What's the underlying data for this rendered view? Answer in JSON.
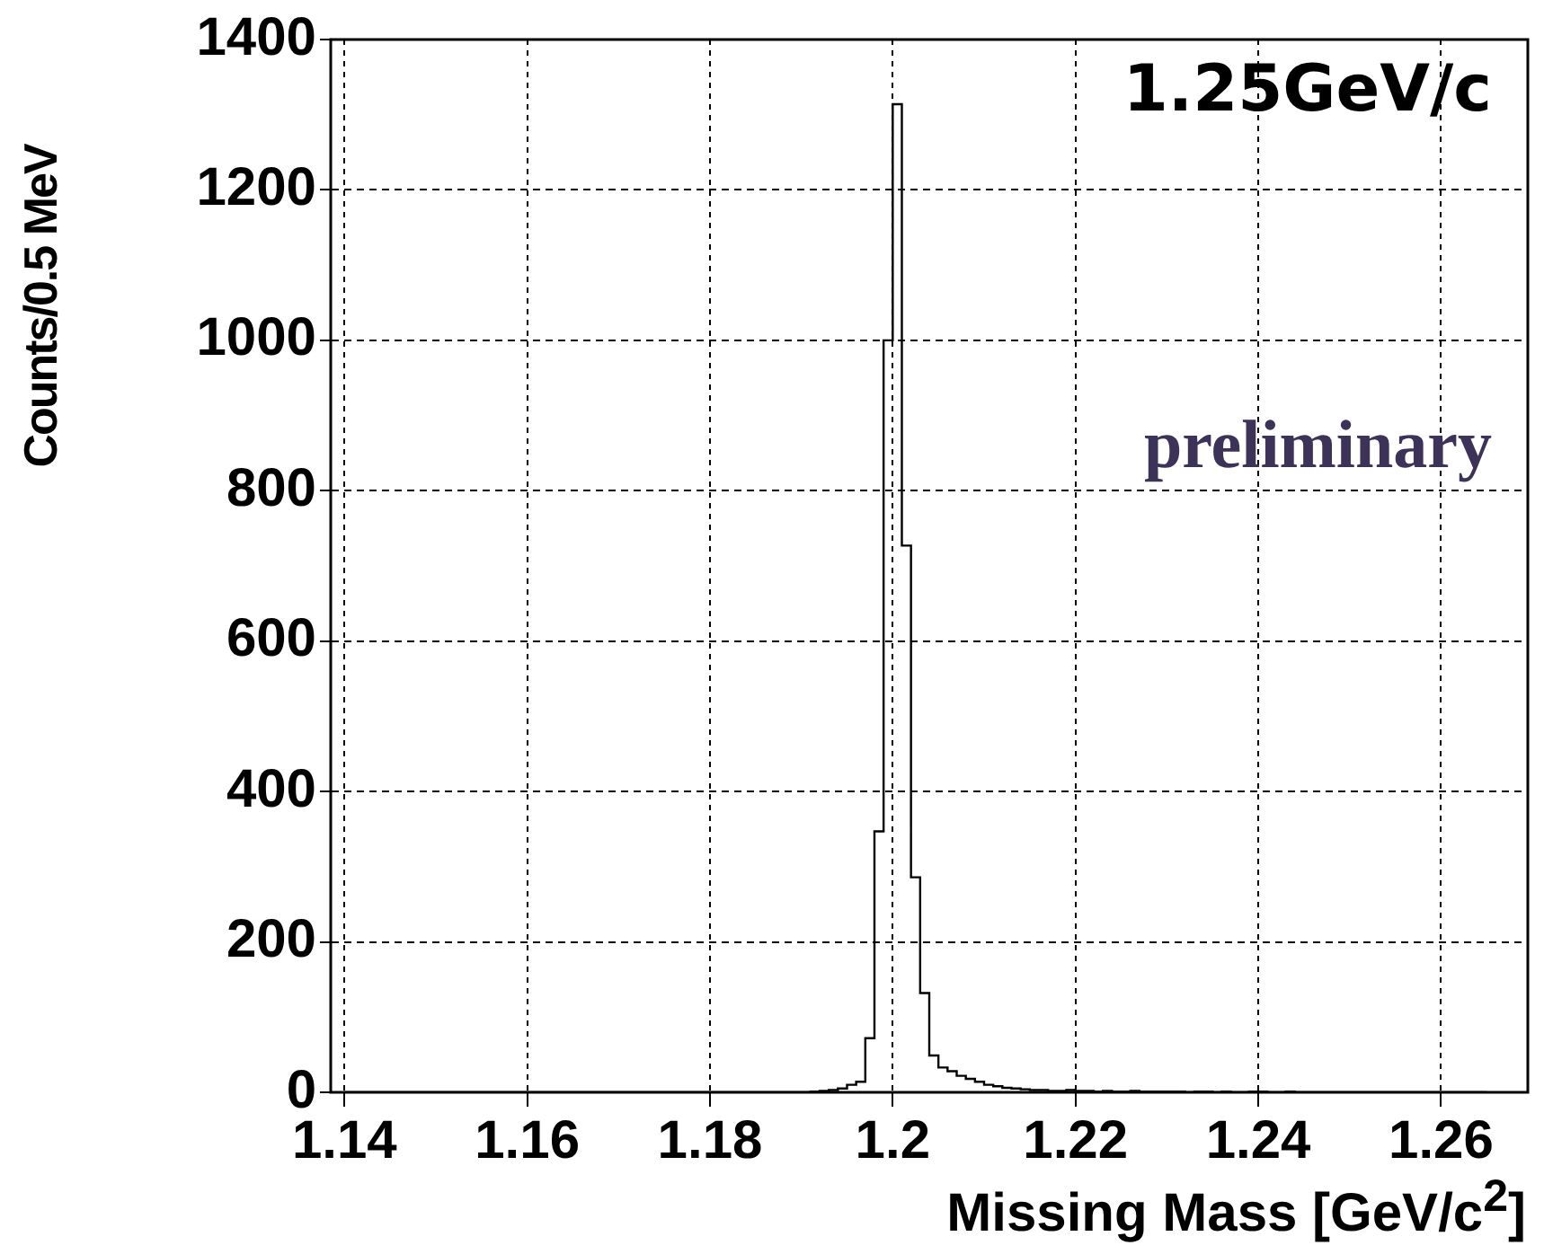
{
  "chart_data": {
    "type": "histogram",
    "xlabel": "Missing Mass [GeV/c$^{2}$]",
    "ylabel": "Counts/0.5 MeV",
    "annotations": [
      "1.25GeV/c",
      "preliminary"
    ],
    "bins": [
      1.14,
      1.141,
      1.142,
      1.143,
      1.144,
      1.145,
      1.146,
      1.147,
      1.148,
      1.149,
      1.15,
      1.151,
      1.152,
      1.153,
      1.154,
      1.155,
      1.156,
      1.157,
      1.158,
      1.159,
      1.16,
      1.161,
      1.162,
      1.163,
      1.164,
      1.165,
      1.166,
      1.167,
      1.168,
      1.169,
      1.17,
      1.171,
      1.172,
      1.173,
      1.174,
      1.175,
      1.176,
      1.177,
      1.178,
      1.179,
      1.18,
      1.181,
      1.182,
      1.183,
      1.184,
      1.185,
      1.186,
      1.187,
      1.188,
      1.189,
      1.19,
      1.191,
      1.192,
      1.193,
      1.194,
      1.195,
      1.196,
      1.197,
      1.198,
      1.199,
      1.2,
      1.201,
      1.202,
      1.203,
      1.204,
      1.205,
      1.206,
      1.207,
      1.208,
      1.209,
      1.21,
      1.211,
      1.212,
      1.213,
      1.214,
      1.215,
      1.216,
      1.217,
      1.218,
      1.219,
      1.22,
      1.221,
      1.222,
      1.223,
      1.224,
      1.225,
      1.226,
      1.227,
      1.228,
      1.229,
      1.23,
      1.231,
      1.232,
      1.233,
      1.234,
      1.235,
      1.236,
      1.237,
      1.238,
      1.239,
      1.24,
      1.241,
      1.242,
      1.243,
      1.244,
      1.245,
      1.246,
      1.247,
      1.248,
      1.249,
      1.25,
      1.251,
      1.252,
      1.253,
      1.254,
      1.255,
      1.256,
      1.257,
      1.258,
      1.259,
      1.26,
      1.261,
      1.262,
      1.263,
      1.264,
      1.265
    ],
    "values": [
      0,
      0,
      0,
      0,
      0,
      0,
      0,
      0,
      0,
      0,
      0,
      0,
      0,
      0,
      0,
      0,
      0,
      0,
      0,
      0,
      0,
      0,
      0,
      0,
      0,
      0,
      0,
      0,
      0,
      0,
      0,
      0,
      0,
      0,
      0,
      0,
      0,
      0,
      0,
      0,
      0,
      0,
      0,
      0,
      0,
      0,
      0,
      0,
      0,
      0,
      0,
      1,
      2,
      3,
      5,
      10,
      14,
      72,
      347,
      1000,
      1314,
      727,
      286,
      132,
      49,
      33,
      28,
      22,
      18,
      14,
      10,
      8,
      6,
      5,
      4,
      3,
      3,
      2,
      2,
      3,
      2,
      2,
      1,
      2,
      1,
      1,
      2,
      1,
      1,
      1,
      1,
      1,
      0,
      1,
      1,
      0,
      1,
      0,
      0,
      1,
      1,
      0,
      0,
      1,
      0,
      0,
      0,
      0,
      0,
      0,
      0,
      0,
      0,
      0,
      0,
      0,
      0,
      0,
      0,
      0,
      0,
      0,
      0,
      0,
      0
    ],
    "color": "#000000",
    "xlim": [
      1.1385,
      1.2695
    ],
    "ylim": [
      0,
      1400
    ],
    "xticks": [
      1.14,
      1.16,
      1.18,
      1.2,
      1.22,
      1.24,
      1.26
    ],
    "yticks": [
      0,
      200,
      400,
      600,
      800,
      1000,
      1200,
      1400
    ],
    "grid": true,
    "legend": false
  }
}
